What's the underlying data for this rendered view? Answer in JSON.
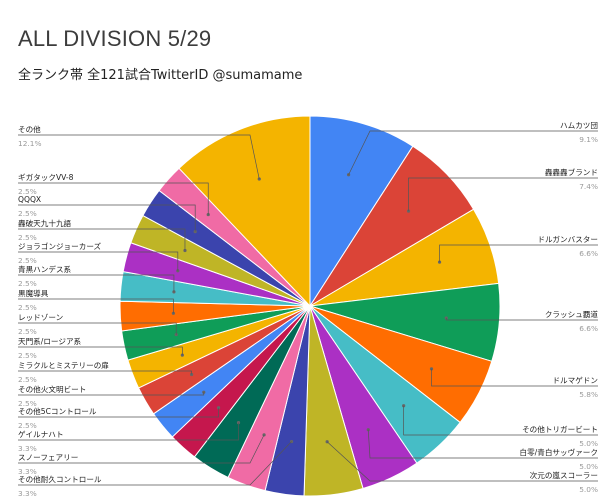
{
  "chart_data": {
    "type": "pie",
    "title": "ALL DIVISION 5/29",
    "subtitle": "全ランク帯 全121試合TwitterID @sumamame",
    "slices": [
      {
        "label": "ハムカツ団",
        "pct_label": "9.1%",
        "value": 9.1,
        "color": "#4285f4"
      },
      {
        "label": "轟轟轟ブランド",
        "pct_label": "7.4%",
        "value": 7.4,
        "color": "#db4437"
      },
      {
        "label": "ドルガンバスター",
        "pct_label": "6.6%",
        "value": 6.6,
        "color": "#f4b400"
      },
      {
        "label": "クラッシュ覇道",
        "pct_label": "6.6%",
        "value": 6.6,
        "color": "#0f9d58"
      },
      {
        "label": "ドルマゲドン",
        "pct_label": "5.8%",
        "value": 5.8,
        "color": "#ff6d01"
      },
      {
        "label": "その他トリガービート",
        "pct_label": "5.0%",
        "value": 5.0,
        "color": "#46bdc6"
      },
      {
        "label": "白零/青白サッヴァーク",
        "pct_label": "5.0%",
        "value": 5.0,
        "color": "#ab30c4"
      },
      {
        "label": "次元の嵐スコーラー",
        "pct_label": "5.0%",
        "value": 5.0,
        "color": "#bfb526"
      },
      {
        "label": "その他耐久コントロール",
        "pct_label": "3.3%",
        "value": 3.3,
        "color": "#3b44ad"
      },
      {
        "label": "スノーフェアリー",
        "pct_label": "3.3%",
        "value": 3.3,
        "color": "#f06ba5"
      },
      {
        "label": "ゲイルナハト",
        "pct_label": "3.3%",
        "value": 3.3,
        "color": "#006a56"
      },
      {
        "label": "その他5Cコントロール",
        "pct_label": "2.5%",
        "value": 2.5,
        "color": "#c5174d"
      },
      {
        "label": "その他火文明ビート",
        "pct_label": "2.5%",
        "value": 2.5,
        "color": "#4285f4"
      },
      {
        "label": "ミラクルとミステリーの扉",
        "pct_label": "2.5%",
        "value": 2.5,
        "color": "#db4437"
      },
      {
        "label": "天門系/ロージア系",
        "pct_label": "2.5%",
        "value": 2.5,
        "color": "#f4b400"
      },
      {
        "label": "レッドゾーン",
        "pct_label": "2.5%",
        "value": 2.5,
        "color": "#0f9d58"
      },
      {
        "label": "黒魔導具",
        "pct_label": "2.5%",
        "value": 2.5,
        "color": "#ff6d01"
      },
      {
        "label": "青黒ハンデス系",
        "pct_label": "2.5%",
        "value": 2.5,
        "color": "#46bdc6"
      },
      {
        "label": "ジョラゴンジョーカーズ",
        "pct_label": "2.5%",
        "value": 2.5,
        "color": "#ab30c4"
      },
      {
        "label": "轟破天九十九語",
        "pct_label": "2.5%",
        "value": 2.5,
        "color": "#bfb526"
      },
      {
        "label": "QQQX",
        "pct_label": "2.5%",
        "value": 2.5,
        "color": "#3b44ad"
      },
      {
        "label": "ギガタックVV-8",
        "pct_label": "2.5%",
        "value": 2.5,
        "color": "#f06ba5"
      },
      {
        "label": "その他",
        "pct_label": "12.1%",
        "value": 12.1,
        "color": "#f4b400"
      }
    ]
  }
}
